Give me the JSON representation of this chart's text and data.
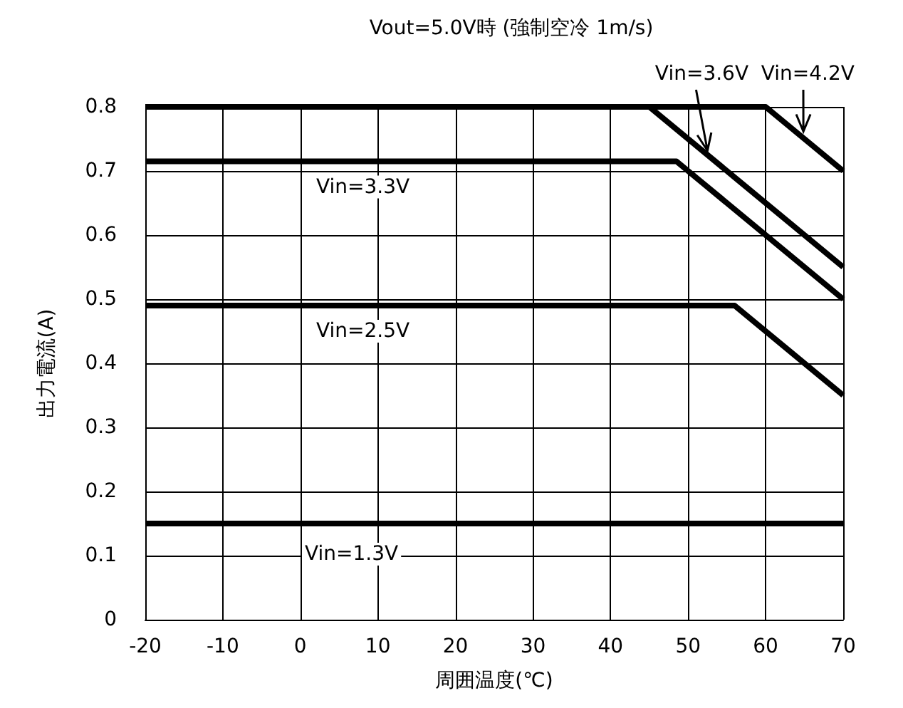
{
  "chart_data": {
    "type": "line",
    "title": "Vout=5.0V時 (強制空冷 1m/s)",
    "xlabel": "周囲温度(℃)",
    "ylabel": "出力電流(A)",
    "xlim": [
      -20,
      70
    ],
    "xticks": [
      -20,
      -10,
      0,
      10,
      20,
      30,
      40,
      50,
      60,
      70
    ],
    "ylim": [
      0,
      0.8
    ],
    "yticks": [
      0,
      0.1,
      0.2,
      0.3,
      0.4,
      0.5,
      0.6,
      0.7,
      0.8
    ],
    "grid": true,
    "legend": false,
    "marker": "none",
    "line_style": "solid",
    "series": [
      {
        "name": "Vin=4.2V",
        "color": "#000000",
        "x": [
          -20,
          60,
          70
        ],
        "values": [
          0.8,
          0.8,
          0.7
        ]
      },
      {
        "name": "Vin=3.6V",
        "color": "#000000",
        "x": [
          -20,
          45,
          70
        ],
        "values": [
          0.8,
          0.8,
          0.55
        ]
      },
      {
        "name": "Vin=3.3V",
        "color": "#000000",
        "x": [
          -20,
          48.5,
          70
        ],
        "values": [
          0.715,
          0.715,
          0.5
        ]
      },
      {
        "name": "Vin=2.5V",
        "color": "#000000",
        "x": [
          -20,
          56,
          70
        ],
        "values": [
          0.49,
          0.49,
          0.35
        ]
      },
      {
        "name": "Vin=1.3V",
        "color": "#000000",
        "x": [
          -20,
          70
        ],
        "values": [
          0.15,
          0.15
        ]
      }
    ]
  }
}
